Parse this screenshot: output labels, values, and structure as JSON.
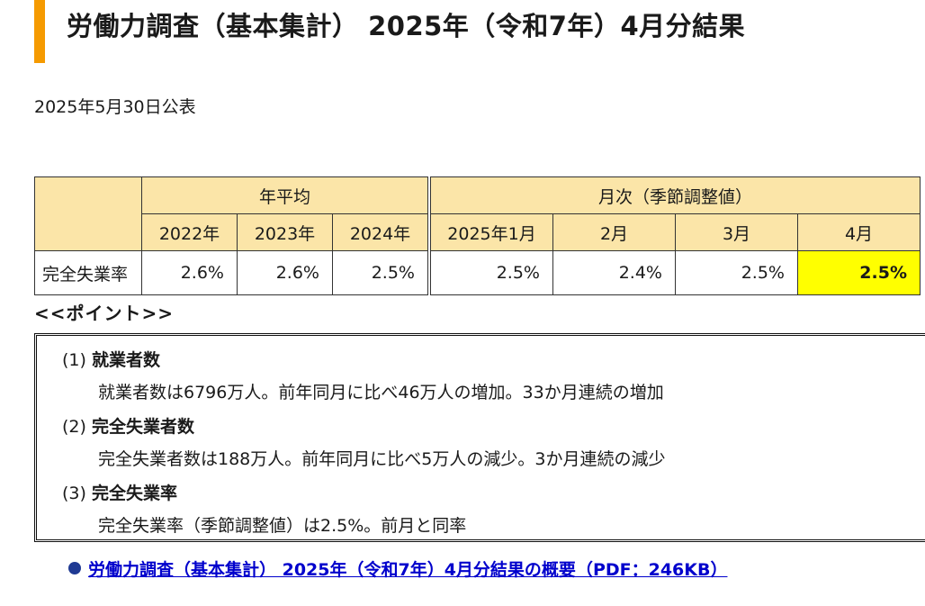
{
  "page": {
    "title": "労働力調査（基本集計） 2025年（令和7年）4月分結果",
    "published": "2025年5月30日公表"
  },
  "table": {
    "annual_group_label": "年平均",
    "monthly_group_label": "月次（季節調整値）",
    "row_label": "完全失業率",
    "annual": [
      {
        "label": "2022年",
        "value": "2.6%"
      },
      {
        "label": "2023年",
        "value": "2.6%"
      },
      {
        "label": "2024年",
        "value": "2.5%"
      }
    ],
    "monthly": [
      {
        "label": "2025年1月",
        "value": "2.5%"
      },
      {
        "label": "2月",
        "value": "2.4%"
      },
      {
        "label": "3月",
        "value": "2.5%"
      },
      {
        "label": "4月",
        "value": "2.5%"
      }
    ],
    "highlight_color": "#ffff00",
    "header_color": "#fbe5a8"
  },
  "points": {
    "heading": "<<ポイント>>",
    "items": [
      {
        "num": "(1)",
        "title": "就業者数",
        "body": "就業者数は6796万人。前年同月に比べ46万人の増加。33か月連続の増加"
      },
      {
        "num": "(2)",
        "title": "完全失業者数",
        "body": "完全失業者数は188万人。前年同月に比べ5万人の減少。3か月連続の減少"
      },
      {
        "num": "(3)",
        "title": "完全失業率",
        "body": "完全失業率（季節調整値）は2.5%。前月と同率"
      }
    ]
  },
  "link": {
    "label": "労働力調査（基本集計） 2025年（令和7年）4月分結果の概要（PDF：246KB）"
  },
  "colors": {
    "accent": "#f59a00",
    "link": "#0000cc",
    "bullet": "#1f3a93"
  }
}
